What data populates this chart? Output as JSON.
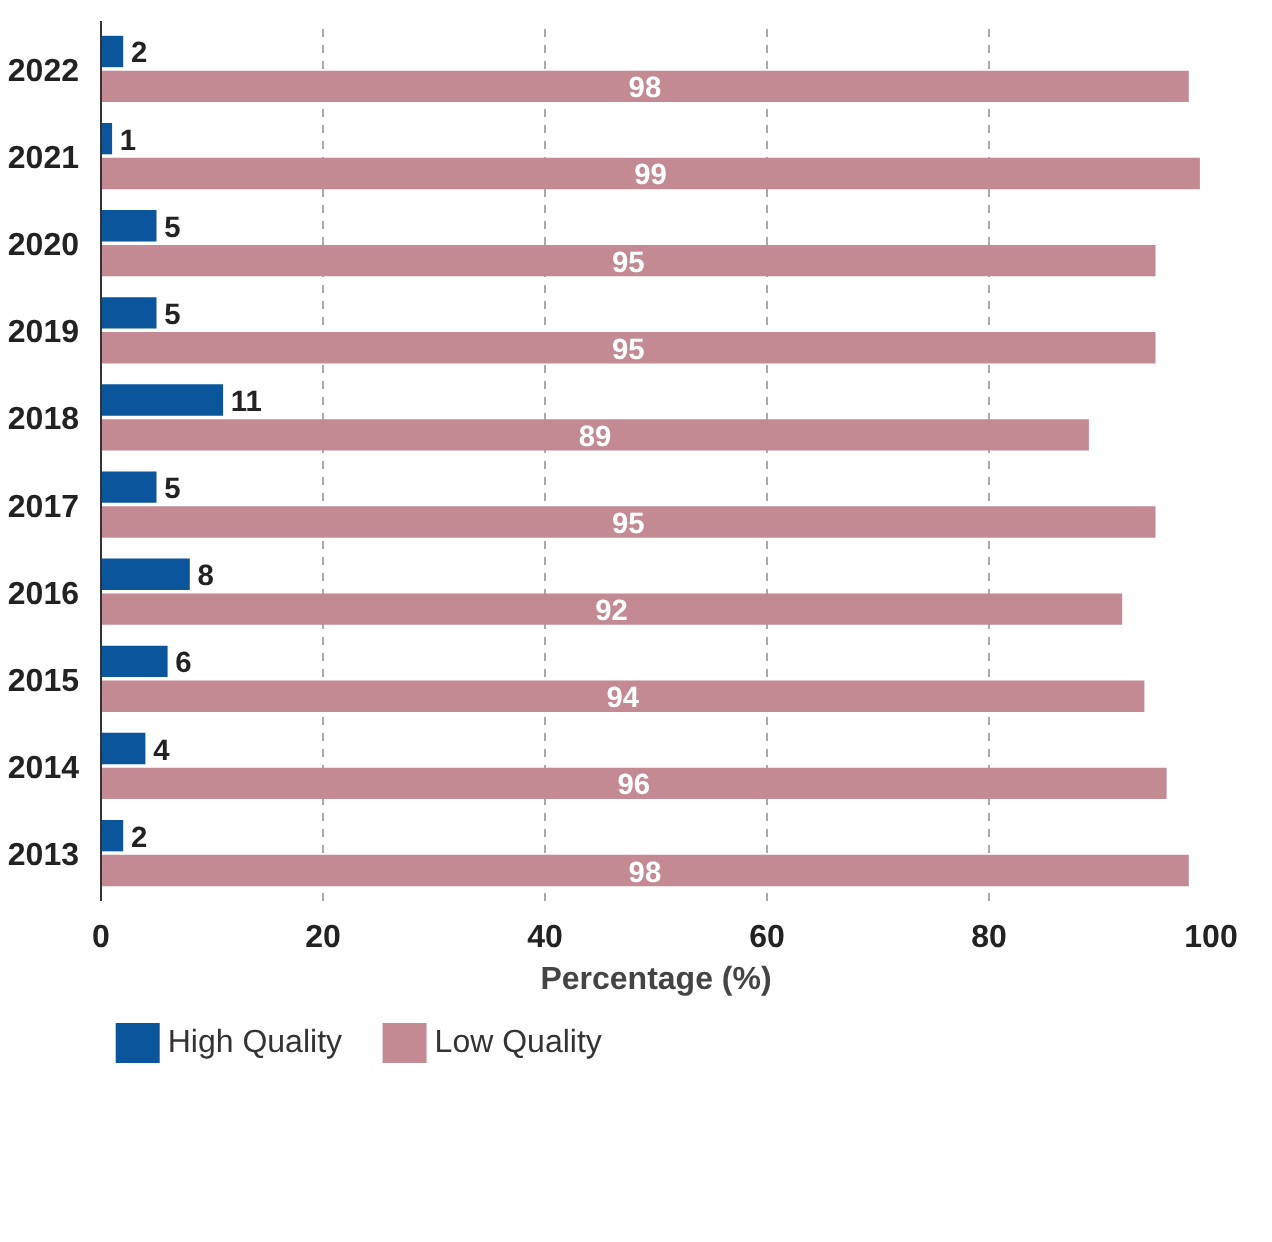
{
  "chart_data": {
    "type": "bar",
    "orientation": "horizontal",
    "xlabel": "Percentage (%)",
    "categories": [
      "2022",
      "2021",
      "2020",
      "2019",
      "2018",
      "2017",
      "2016",
      "2015",
      "2014",
      "2013"
    ],
    "series": [
      {
        "name": "High Quality",
        "color": "#0b559c",
        "values": [
          2,
          1,
          5,
          5,
          11,
          5,
          8,
          6,
          4,
          2
        ]
      },
      {
        "name": "Low Quality",
        "color": "#c48a94",
        "values": [
          98,
          99,
          95,
          95,
          89,
          95,
          92,
          94,
          96,
          98
        ]
      }
    ],
    "xlim": [
      0,
      100
    ],
    "xticks": [
      0,
      20,
      40,
      60,
      80,
      100
    ],
    "grid": "x",
    "legend": "bottom",
    "data_labels": true
  }
}
